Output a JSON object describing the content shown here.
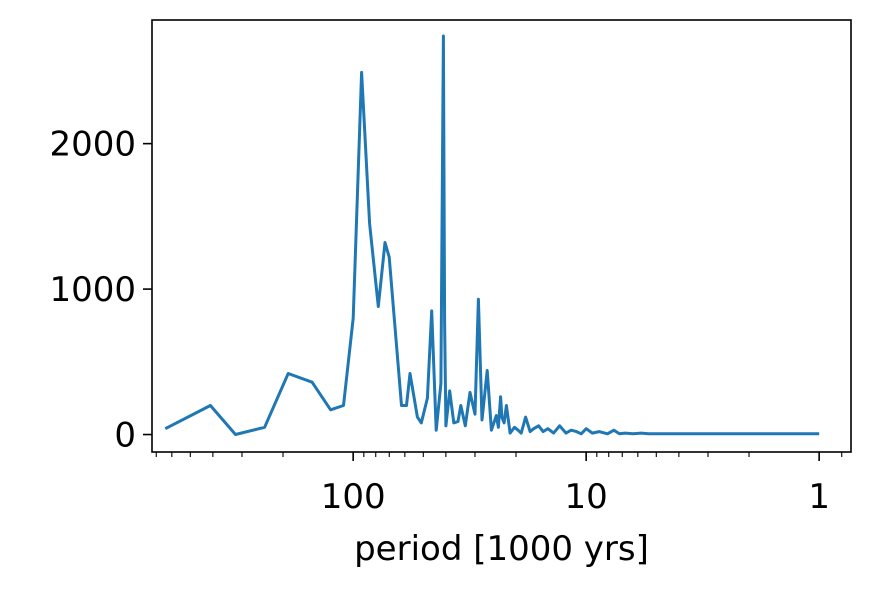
{
  "chart_data": {
    "type": "line",
    "title": "",
    "xlabel": "period [1000 yrs]",
    "ylabel": "",
    "x_scale": "log",
    "x_reversed": true,
    "xlim": [
      730,
      0.73
    ],
    "ylim": [
      -120,
      2850
    ],
    "x_ticks": [
      {
        "value": 100,
        "label": "100"
      },
      {
        "value": 10,
        "label": "10"
      },
      {
        "value": 1,
        "label": "1"
      }
    ],
    "y_ticks": [
      {
        "value": 0,
        "label": "0"
      },
      {
        "value": 1000,
        "label": "1000"
      },
      {
        "value": 2000,
        "label": "2000"
      }
    ],
    "grid": false,
    "legend": "none",
    "line_color": "#1f77b4",
    "series": [
      {
        "x": [
          640,
          410,
          320,
          240,
          190,
          150,
          125,
          110,
          100,
          92,
          85,
          78,
          73,
          70,
          62,
          59,
          57,
          53,
          51,
          48,
          46,
          44,
          42,
          41,
          40.5,
          40,
          38.5,
          37,
          35.5,
          34.5,
          33,
          31.5,
          30,
          29,
          28,
          26.6,
          25.5,
          24.3,
          23.8,
          23.3,
          23,
          22.5,
          22,
          21.2,
          20.3,
          19.6,
          19,
          18.2,
          17.4,
          16.8,
          16,
          15.3,
          14.6,
          13.8,
          13,
          12.2,
          11.6,
          11,
          10.5,
          10,
          9.4,
          8.8,
          8.1,
          7.6,
          7.2,
          6.8,
          6.3,
          5.8,
          5.4,
          5,
          4.6,
          4.2,
          3.8,
          3.4,
          3,
          2.5,
          2,
          1.5,
          1
        ],
        "y": [
          40,
          200,
          0,
          50,
          420,
          360,
          170,
          200,
          800,
          2490,
          1450,
          880,
          1320,
          1220,
          200,
          200,
          420,
          120,
          80,
          250,
          850,
          30,
          350,
          2740,
          780,
          60,
          300,
          80,
          90,
          200,
          60,
          290,
          140,
          930,
          100,
          440,
          30,
          130,
          50,
          260,
          120,
          80,
          200,
          10,
          50,
          30,
          10,
          120,
          20,
          40,
          60,
          20,
          40,
          10,
          60,
          10,
          30,
          20,
          5,
          40,
          10,
          20,
          5,
          30,
          5,
          10,
          5,
          10,
          5,
          5,
          5,
          5,
          5,
          5,
          5,
          5,
          5,
          5,
          5
        ]
      }
    ]
  }
}
